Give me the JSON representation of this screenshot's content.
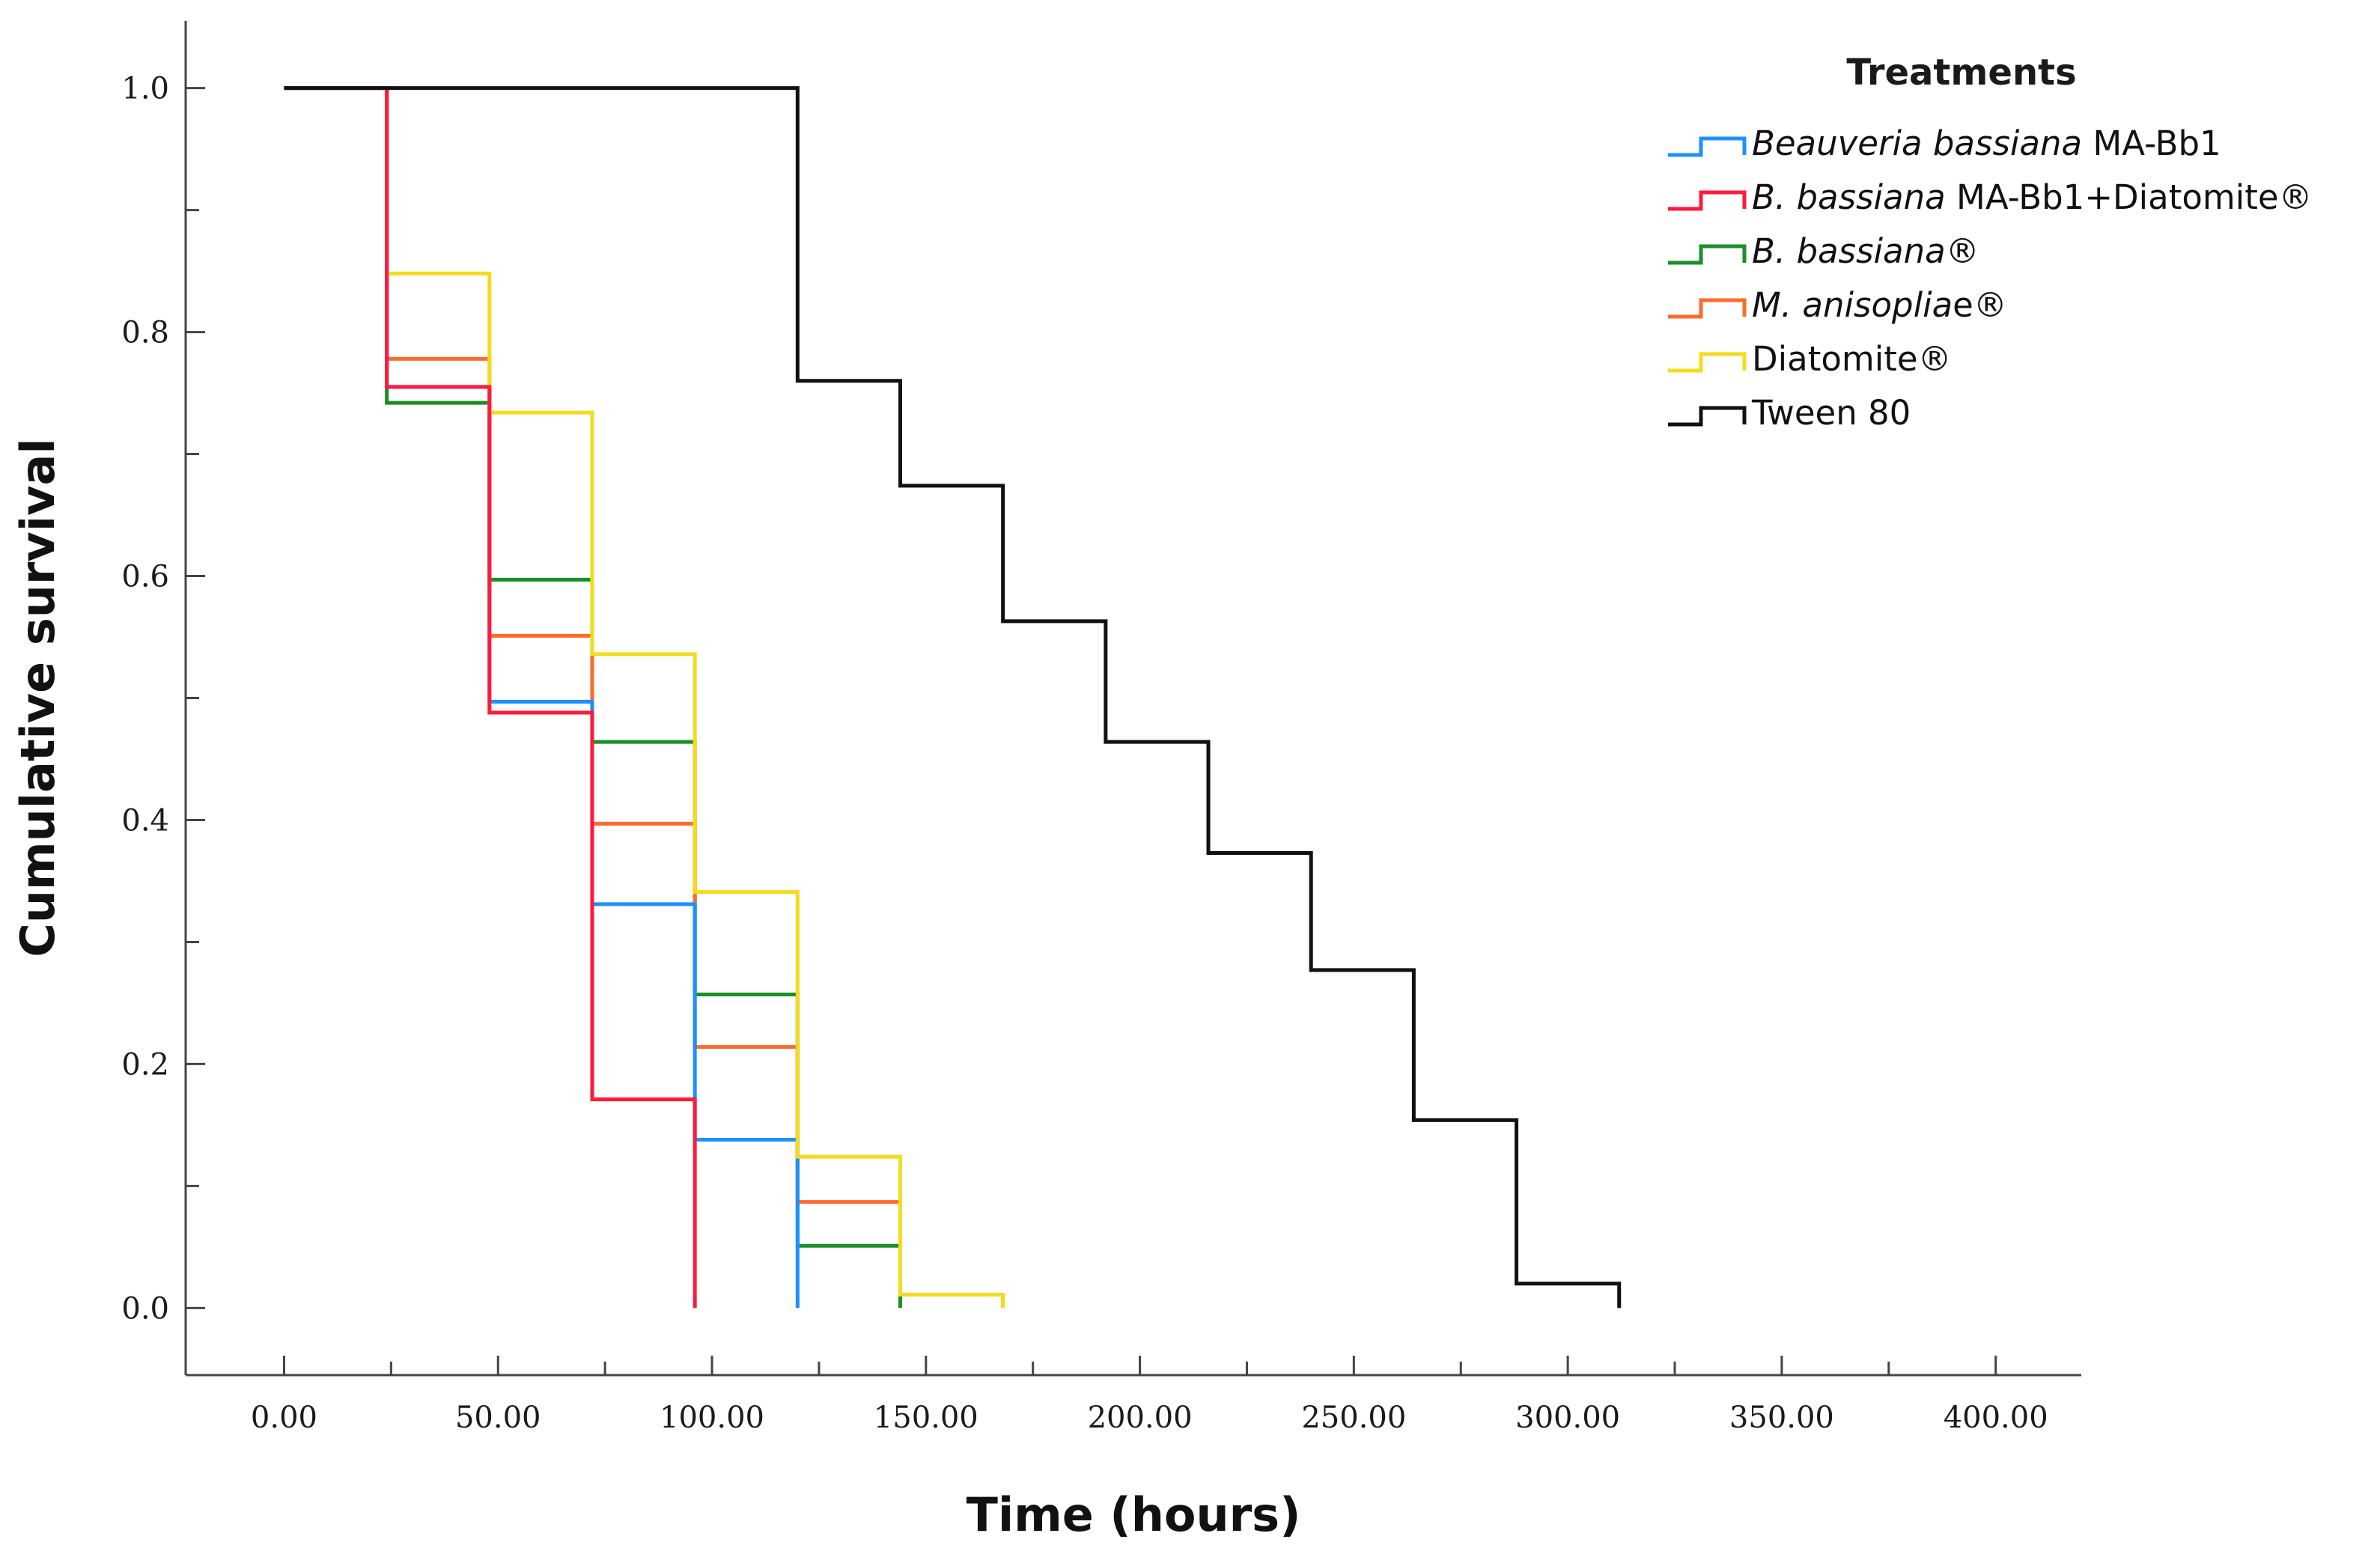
{
  "chart_data": {
    "type": "line",
    "step": true,
    "title": "",
    "xlabel": "Time (hours)",
    "ylabel": "Cumulative survival",
    "xlim": [
      -23,
      420
    ],
    "ylim": [
      -0.055,
      1.055
    ],
    "x_ticks": [
      0,
      50,
      100,
      150,
      200,
      250,
      300,
      350,
      400
    ],
    "x_tick_labels": [
      "0.00",
      "50.00",
      "100.00",
      "150.00",
      "200.00",
      "250.00",
      "300.00",
      "350.00",
      "400.00"
    ],
    "y_ticks": [
      0,
      0.2,
      0.4,
      0.6,
      0.8,
      1.0
    ],
    "y_tick_labels": [
      "0.0",
      "0.2",
      "0.4",
      "0.6",
      "0.8",
      "1.0"
    ],
    "x_minor_step": 25,
    "y_minor_step": 0.1,
    "legend": {
      "title": "Treatments",
      "position": "top-right"
    },
    "series": [
      {
        "name": "Beauveria bassiana MA-Bb1",
        "label_italic": "Beauveria bassiana",
        "label_plain": " MA-Bb1",
        "color": "#1e90ff",
        "x": [
          0,
          24,
          48,
          72,
          96,
          120
        ],
        "y": [
          1.0,
          0.755,
          0.497,
          0.331,
          0.138,
          0.0
        ]
      },
      {
        "name": "B. bassiana MA-Bb1+Diatomite®",
        "label_italic": "B. bassiana",
        "label_plain": " MA-Bb1+Diatomite®",
        "color": "#ff1a3c",
        "x": [
          0,
          24,
          48,
          72,
          96
        ],
        "y": [
          1.0,
          0.755,
          0.488,
          0.171,
          0.0
        ]
      },
      {
        "name": "B. bassiana®",
        "label_italic": "B. bassiana",
        "label_plain": "®",
        "color": "#1a8f2a",
        "x": [
          0,
          24,
          48,
          72,
          96,
          120,
          144
        ],
        "y": [
          1.0,
          0.742,
          0.597,
          0.464,
          0.257,
          0.051,
          0.0
        ]
      },
      {
        "name": "M. anisopliae®",
        "label_italic": "M. anisoplia",
        "label_plain": "e®",
        "color": "#ff6a2b",
        "x": [
          0,
          24,
          48,
          72,
          96,
          120,
          144,
          168
        ],
        "y": [
          1.0,
          0.778,
          0.551,
          0.397,
          0.214,
          0.087,
          0.011,
          0.0
        ]
      },
      {
        "name": "Diatomite®",
        "label_italic": "",
        "label_plain": "Diatomite®",
        "color": "#f2dc1c",
        "x": [
          0,
          24,
          48,
          72,
          96,
          120,
          144,
          168
        ],
        "y": [
          1.0,
          0.848,
          0.734,
          0.536,
          0.341,
          0.124,
          0.011,
          0.0
        ]
      },
      {
        "name": "Tween 80",
        "label_italic": "",
        "label_plain": "Tween 80",
        "color": "#111111",
        "x": [
          0,
          120,
          144,
          168,
          192,
          216,
          240,
          264,
          288,
          312
        ],
        "y": [
          1.0,
          0.76,
          0.674,
          0.563,
          0.464,
          0.373,
          0.277,
          0.154,
          0.02,
          0.0
        ]
      }
    ]
  }
}
